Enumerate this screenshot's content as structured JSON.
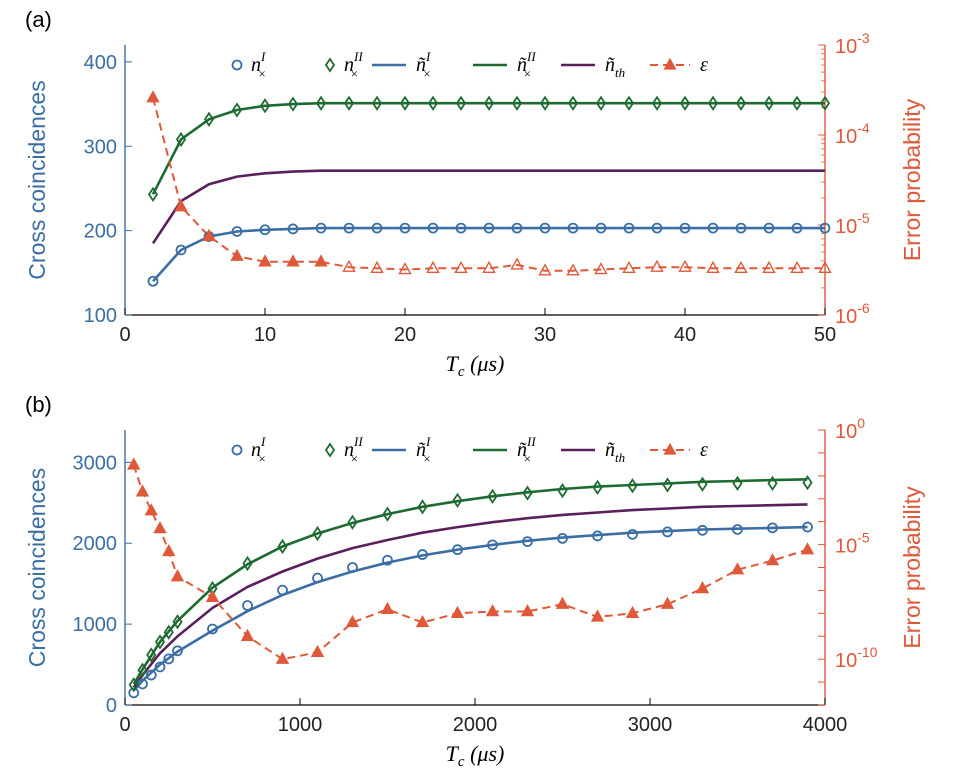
{
  "colors": {
    "blue": "#3a6ea5",
    "green": "#1e6b32",
    "purple": "#5a1f5c",
    "red": "#e0583a",
    "axis": "#000000"
  },
  "chart_data": [
    {
      "panel_label": "(a)",
      "type": "line",
      "xlabel": "T_c (μs)",
      "xlabel_main": "T",
      "xlabel_sub": "c",
      "xlabel_unit": "(μs)",
      "ylabel": "Cross coincidences",
      "ylabel_right": "Error probability",
      "xlim": [
        0,
        50
      ],
      "ylim": [
        100,
        420
      ],
      "xticks": [
        0,
        10,
        20,
        30,
        40,
        50
      ],
      "yticks": [
        100,
        200,
        300,
        400
      ],
      "right_log_range": [
        -6,
        -3
      ],
      "right_ticks": [
        {
          "exp": -6,
          "base": "10",
          "sup": "-6"
        },
        {
          "exp": -5,
          "base": "10",
          "sup": "-5"
        },
        {
          "exp": -4,
          "base": "10",
          "sup": "-4"
        },
        {
          "exp": -3,
          "base": "10",
          "sup": "-3"
        }
      ],
      "legend": [
        {
          "key": "n_I",
          "main": "n",
          "sup": "I",
          "sub": "×",
          "marker": "circle"
        },
        {
          "key": "n_II",
          "main": "n",
          "sup": "II",
          "sub": "×",
          "marker": "diamond"
        },
        {
          "key": "nt_I",
          "main": "ñ",
          "sup": "I",
          "sub": "×",
          "marker": "line-blue"
        },
        {
          "key": "nt_II",
          "main": "ñ",
          "sup": "II",
          "sub": "×",
          "marker": "line-green"
        },
        {
          "key": "nt_th",
          "main": "ñ",
          "sup": "",
          "sub": "th",
          "marker": "line-purple"
        },
        {
          "key": "eps",
          "main": "ε",
          "sup": "",
          "sub": "",
          "marker": "dash-triangle"
        }
      ],
      "series": {
        "n_I": {
          "x": [
            2,
            4,
            6,
            8,
            10,
            12,
            14,
            16,
            18,
            20,
            22,
            24,
            26,
            28,
            30,
            32,
            34,
            36,
            38,
            40,
            42,
            44,
            46,
            48,
            50
          ],
          "y": [
            140,
            177,
            193,
            199,
            201,
            202,
            203,
            203,
            203,
            203,
            203,
            203,
            203,
            203,
            203,
            203,
            203,
            203,
            203,
            203,
            203,
            203,
            203,
            203,
            203
          ]
        },
        "n_II": {
          "x": [
            2,
            4,
            6,
            8,
            10,
            12,
            14,
            16,
            18,
            20,
            22,
            24,
            26,
            28,
            30,
            32,
            34,
            36,
            38,
            40,
            42,
            44,
            46,
            48,
            50
          ],
          "y": [
            243,
            308,
            332,
            343,
            348,
            350,
            351,
            351,
            351,
            351,
            351,
            351,
            351,
            351,
            351,
            351,
            351,
            351,
            351,
            351,
            351,
            351,
            351,
            351,
            351
          ]
        },
        "nt_I": {
          "x": [
            2,
            4,
            6,
            8,
            10,
            12,
            14,
            16,
            20,
            30,
            40,
            50
          ],
          "y": [
            140,
            177,
            193,
            199,
            201,
            202,
            203,
            203,
            203,
            203,
            203,
            203
          ]
        },
        "nt_II": {
          "x": [
            2,
            4,
            6,
            8,
            10,
            12,
            14,
            16,
            20,
            30,
            40,
            50
          ],
          "y": [
            243,
            308,
            332,
            343,
            348,
            350,
            351,
            351,
            351,
            351,
            351,
            351
          ]
        },
        "nt_th": {
          "x": [
            2,
            4,
            6,
            8,
            10,
            12,
            14,
            16,
            20,
            30,
            40,
            50
          ],
          "y": [
            185,
            235,
            255,
            264,
            268,
            270,
            271,
            271,
            271,
            271,
            271,
            271
          ]
        },
        "eps": {
          "x": [
            2,
            4,
            6,
            8,
            10,
            12,
            14,
            16,
            18,
            20,
            22,
            24,
            26,
            28,
            30,
            32,
            34,
            36,
            38,
            40,
            42,
            44,
            46,
            48,
            50
          ],
          "y": [
            0.00026,
            1.6e-05,
            7.5e-06,
            4.5e-06,
            3.9e-06,
            3.9e-06,
            3.9e-06,
            3.4e-06,
            3.3e-06,
            3.2e-06,
            3.3e-06,
            3.3e-06,
            3.3e-06,
            3.6e-06,
            3.1e-06,
            3.1e-06,
            3.2e-06,
            3.3e-06,
            3.4e-06,
            3.4e-06,
            3.3e-06,
            3.3e-06,
            3.3e-06,
            3.3e-06,
            3.3e-06
          ],
          "filled": [
            true,
            true,
            true,
            true,
            true,
            true,
            true,
            false,
            false,
            false,
            false,
            false,
            false,
            false,
            false,
            false,
            false,
            false,
            false,
            false,
            false,
            false,
            false,
            false,
            false
          ]
        }
      }
    },
    {
      "panel_label": "(b)",
      "type": "line",
      "xlabel": "T_c (μs)",
      "xlabel_main": "T",
      "xlabel_sub": "c",
      "xlabel_unit": "(μs)",
      "ylabel": "Cross coincidences",
      "ylabel_right": "Error probability",
      "xlim": [
        0,
        4000
      ],
      "ylim": [
        0,
        3400
      ],
      "xticks": [
        0,
        1000,
        2000,
        3000,
        4000
      ],
      "yticks": [
        0,
        1000,
        2000,
        3000
      ],
      "right_log_range": [
        -12,
        0
      ],
      "right_ticks": [
        {
          "exp": -10,
          "base": "10",
          "sup": "-10"
        },
        {
          "exp": -5,
          "base": "10",
          "sup": "-5"
        },
        {
          "exp": 0,
          "base": "10",
          "sup": "0"
        }
      ],
      "legend": [
        {
          "key": "n_I",
          "main": "n",
          "sup": "I",
          "sub": "×",
          "marker": "circle"
        },
        {
          "key": "n_II",
          "main": "n",
          "sup": "II",
          "sub": "×",
          "marker": "diamond"
        },
        {
          "key": "nt_I",
          "main": "ñ",
          "sup": "I",
          "sub": "×",
          "marker": "line-blue"
        },
        {
          "key": "nt_II",
          "main": "ñ",
          "sup": "II",
          "sub": "×",
          "marker": "line-green"
        },
        {
          "key": "nt_th",
          "main": "ñ",
          "sup": "",
          "sub": "th",
          "marker": "line-purple"
        },
        {
          "key": "eps",
          "main": "ε",
          "sup": "",
          "sub": "",
          "marker": "dash-triangle"
        }
      ],
      "series": {
        "n_I": {
          "x": [
            50,
            100,
            150,
            200,
            250,
            300,
            500,
            700,
            900,
            1100,
            1300,
            1500,
            1700,
            1900,
            2100,
            2300,
            2500,
            2700,
            2900,
            3100,
            3300,
            3500,
            3700,
            3900
          ],
          "y": [
            150,
            260,
            370,
            470,
            570,
            670,
            940,
            1230,
            1420,
            1570,
            1700,
            1790,
            1860,
            1920,
            1980,
            2020,
            2060,
            2090,
            2110,
            2140,
            2160,
            2170,
            2190,
            2200
          ]
        },
        "n_II": {
          "x": [
            50,
            100,
            150,
            200,
            250,
            300,
            500,
            700,
            900,
            1100,
            1300,
            1500,
            1700,
            1900,
            2100,
            2300,
            2500,
            2700,
            2900,
            3100,
            3300,
            3500,
            3700,
            3900
          ],
          "y": [
            250,
            430,
            620,
            780,
            900,
            1030,
            1440,
            1750,
            1960,
            2120,
            2260,
            2360,
            2450,
            2530,
            2580,
            2620,
            2650,
            2690,
            2710,
            2720,
            2730,
            2740,
            2740,
            2750
          ]
        },
        "nt_I": {
          "x": [
            50,
            100,
            200,
            300,
            500,
            700,
            900,
            1100,
            1300,
            1500,
            1700,
            1900,
            2100,
            2300,
            2500,
            2700,
            2900,
            3100,
            3300,
            3500,
            3700,
            3900
          ],
          "y": [
            180,
            300,
            500,
            660,
            920,
            1160,
            1360,
            1520,
            1650,
            1760,
            1850,
            1920,
            1980,
            2030,
            2070,
            2100,
            2130,
            2150,
            2170,
            2180,
            2190,
            2200
          ]
        },
        "nt_II": {
          "x": [
            50,
            100,
            200,
            300,
            500,
            700,
            900,
            1100,
            1300,
            1500,
            1700,
            1900,
            2100,
            2300,
            2500,
            2700,
            2900,
            3100,
            3300,
            3500,
            3700,
            3900
          ],
          "y": [
            260,
            440,
            780,
            1040,
            1450,
            1740,
            1960,
            2120,
            2250,
            2360,
            2450,
            2520,
            2580,
            2630,
            2670,
            2700,
            2720,
            2740,
            2760,
            2770,
            2780,
            2790
          ]
        },
        "nt_th": {
          "x": [
            50,
            100,
            200,
            300,
            500,
            700,
            900,
            1100,
            1300,
            1500,
            1700,
            1900,
            2100,
            2300,
            2500,
            2700,
            2900,
            3100,
            3300,
            3500,
            3700,
            3900
          ],
          "y": [
            220,
            370,
            640,
            850,
            1200,
            1460,
            1650,
            1810,
            1940,
            2040,
            2130,
            2200,
            2260,
            2310,
            2350,
            2380,
            2410,
            2430,
            2450,
            2460,
            2470,
            2480
          ]
        },
        "eps": {
          "x": [
            50,
            100,
            150,
            200,
            250,
            300,
            500,
            700,
            900,
            1100,
            1300,
            1500,
            1700,
            1900,
            2100,
            2300,
            2500,
            2700,
            2900,
            3100,
            3300,
            3500,
            3700,
            3900
          ],
          "y": [
            0.03,
            0.002,
            0.0003,
            5e-05,
            5e-06,
            4e-07,
            5e-08,
            1e-09,
            1e-10,
            2e-10,
            4e-09,
            1.5e-08,
            4e-09,
            1e-08,
            1.2e-08,
            1.2e-08,
            2.5e-08,
            7e-09,
            1e-08,
            2.5e-08,
            1.2e-07,
            8e-07,
            2e-06,
            6e-06
          ],
          "filled": [
            true,
            true,
            true,
            true,
            true,
            true,
            true,
            true,
            true,
            true,
            true,
            true,
            true,
            true,
            true,
            true,
            true,
            true,
            true,
            true,
            true,
            true,
            true,
            true
          ]
        }
      }
    }
  ]
}
